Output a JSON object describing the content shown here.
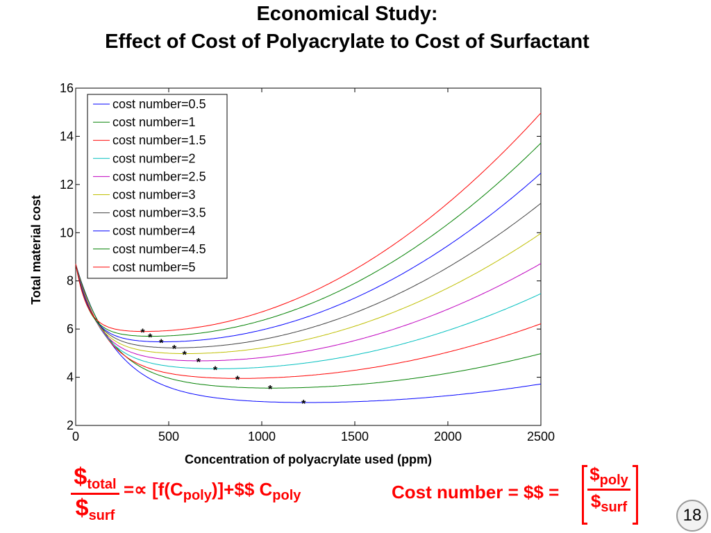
{
  "slide": {
    "title_line1": "Economical Study:",
    "title_line2": "Effect of Cost of Polyacrylate to Cost of Surfactant",
    "page_number": "18"
  },
  "equation": {
    "dollar": "$",
    "total_sub": "total",
    "surf_sub": "surf",
    "proportional": "=∝ [f(C",
    "poly_sub": "poly",
    "mid_rest": ")]+$$ C",
    "poly_sub2": "poly",
    "cost_number_label": "Cost number = $$ =",
    "poly_sub3": "poly",
    "surf_sub2": "surf"
  },
  "colors": {
    "accent_red": "#ff0000",
    "series": [
      "#0000ff",
      "#008000",
      "#ff0000",
      "#00bfbf",
      "#bf00bf",
      "#bfbf00",
      "#404040",
      "#0000ff",
      "#008000",
      "#ff0000"
    ]
  },
  "chart_data": {
    "type": "line",
    "title": "",
    "xlabel": "Concentration of polyacrylate used (ppm)",
    "ylabel": "Total material cost",
    "xlim": [
      0,
      2500
    ],
    "ylim": [
      2,
      16
    ],
    "xticks": [
      0,
      500,
      1000,
      1500,
      2000,
      2500
    ],
    "yticks": [
      2,
      4,
      6,
      8,
      10,
      12,
      14,
      16
    ],
    "legend_position": "top-left",
    "grid": false,
    "series": [
      {
        "name": "cost number=0.5",
        "start": 8.7,
        "minimum": {
          "x": 1225,
          "y": 2.95
        },
        "end": 3.72
      },
      {
        "name": "cost number=1",
        "start": 8.7,
        "minimum": {
          "x": 1045,
          "y": 3.55
        },
        "end": 4.98
      },
      {
        "name": "cost number=1.5",
        "start": 8.7,
        "minimum": {
          "x": 870,
          "y": 3.95
        },
        "end": 6.22
      },
      {
        "name": "cost number=2",
        "start": 8.7,
        "minimum": {
          "x": 750,
          "y": 4.35
        },
        "end": 7.47
      },
      {
        "name": "cost number=2.5",
        "start": 8.7,
        "minimum": {
          "x": 660,
          "y": 4.68
        },
        "end": 8.72
      },
      {
        "name": "cost number=3",
        "start": 8.7,
        "minimum": {
          "x": 585,
          "y": 4.98
        },
        "end": 9.97
      },
      {
        "name": "cost number=3.5",
        "start": 8.7,
        "minimum": {
          "x": 530,
          "y": 5.22
        },
        "end": 11.22
      },
      {
        "name": "cost number=4",
        "start": 8.7,
        "minimum": {
          "x": 460,
          "y": 5.47
        },
        "end": 12.47
      },
      {
        "name": "cost number=4.5",
        "start": 8.7,
        "minimum": {
          "x": 400,
          "y": 5.7
        },
        "end": 13.72
      },
      {
        "name": "cost number=5",
        "start": 8.7,
        "minimum": {
          "x": 360,
          "y": 5.9
        },
        "end": 14.97
      }
    ],
    "marker_symbol": "*"
  }
}
